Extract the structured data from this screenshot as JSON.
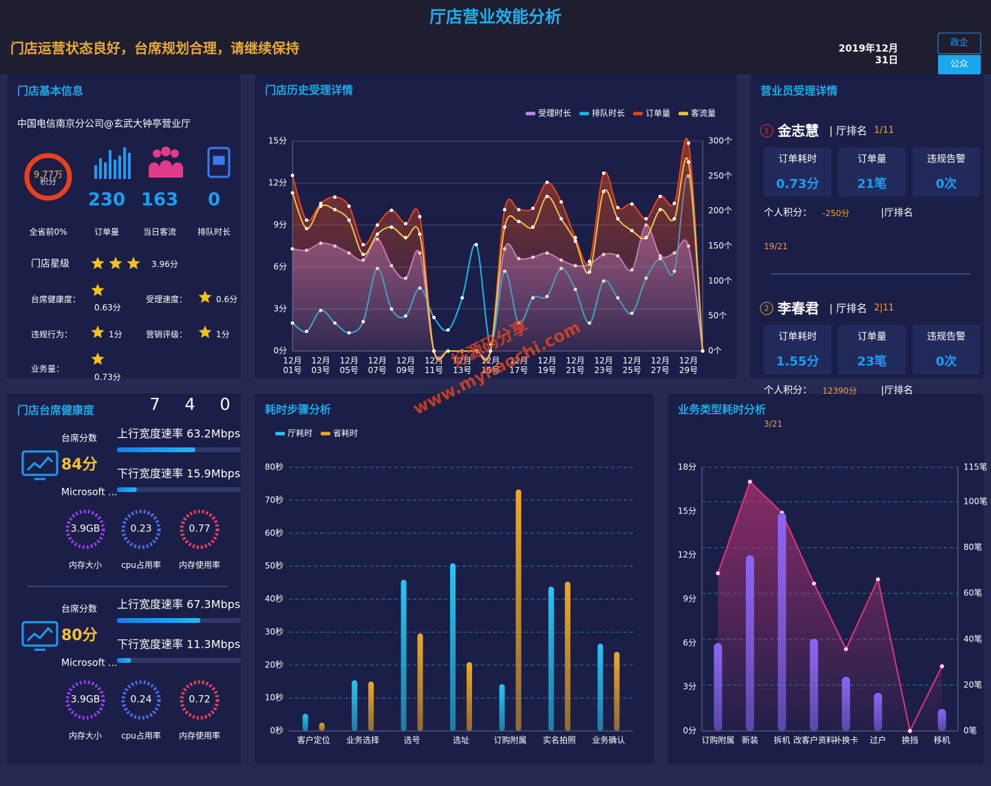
{
  "header": {
    "title": "厅店营业效能分析",
    "status": "门店运营状态良好，台席规划合理，请继续保持",
    "date": "2019年12月31日",
    "buttons": [
      "政企",
      "公众"
    ]
  },
  "watermark": [
    "好源码分享",
    "www.myhaochi.com"
  ],
  "store_info": {
    "title": "门店基本信息",
    "name": "中国电信南京分公司@玄武大钟亭营业厅",
    "points": "9.77万",
    "points_unit": "积分",
    "rank": "全省前0%",
    "stats": [
      {
        "value": 230,
        "label": "订单量"
      },
      {
        "value": 163,
        "label": "当日客流"
      },
      {
        "value": 0,
        "label": "排队时长"
      }
    ],
    "star_label": "门店星级",
    "star_score": "3.96分",
    "scores": [
      {
        "label": "台席健康度：",
        "value": "0.63分"
      },
      {
        "label": "受理速度：",
        "value": "0.6分"
      },
      {
        "label": "违规行为：",
        "value": "1分"
      },
      {
        "label": "营销评级：",
        "value": "1分"
      },
      {
        "label": "业务量：",
        "value": "0.73分"
      }
    ]
  },
  "staff": {
    "title": "营业员受理详情",
    "members": [
      {
        "rank": "1",
        "name": "金志慧",
        "rank_label": "| 厅排名",
        "hall_rank": "1/11",
        "metrics": [
          {
            "label": "订单耗时",
            "value": "0.73分"
          },
          {
            "label": "订单量",
            "value": "21笔"
          },
          {
            "label": "违规告警",
            "value": "0次"
          }
        ],
        "points_label": "个人积分：",
        "points": "-250分",
        "rank2_label": "|厅排名",
        "rank2": "19/21"
      },
      {
        "rank": "2",
        "name": "李春君",
        "rank_label": "| 厅排名",
        "hall_rank": "2|11",
        "metrics": [
          {
            "label": "订单耗时",
            "value": "1.55分"
          },
          {
            "label": "订单量",
            "value": "23笔"
          },
          {
            "label": "违规告警",
            "value": "0次"
          }
        ],
        "points_label": "个人积分：",
        "points": "12390分",
        "rank2_label": "|厅排名",
        "rank2": "3/21"
      }
    ]
  },
  "health": {
    "title": "门店台席健康度",
    "counts": [
      7,
      4,
      0
    ],
    "rate_range": [
      0,
      100
    ],
    "desks": [
      {
        "score_label": "台席分数",
        "score": "84分",
        "up": {
          "value": 63.2,
          "label": "上行宽度速率 63.2Mbps"
        },
        "down": {
          "value": 15.9,
          "label": "下行宽度速率 15.9Mbps"
        },
        "system": "Microsoft ...",
        "gauges": [
          {
            "value": "3.9GB",
            "label": "内存大小"
          },
          {
            "value": "0.23",
            "label": "cpu占用率"
          },
          {
            "value": "0.77",
            "label": "内存使用率"
          }
        ]
      },
      {
        "score_label": "台席分数",
        "score": "80分",
        "up": {
          "value": 67.3,
          "label": "上行宽度速率 67.3Mbps"
        },
        "down": {
          "value": 11.3,
          "label": "下行宽度速率 11.3Mbps"
        },
        "system": "Microsoft ...",
        "gauges": [
          {
            "value": "3.9GB",
            "label": "内存大小"
          },
          {
            "value": "0.24",
            "label": "cpu占用率"
          },
          {
            "value": "0.72",
            "label": "内存使用率"
          }
        ]
      }
    ]
  },
  "chart_data": [
    {
      "type": "line",
      "title": "门店历史受理详情",
      "categories": [
        "12月01号",
        null,
        "12月03号",
        null,
        "12月05号",
        null,
        "12月07号",
        null,
        "12月09号",
        null,
        "12月11号",
        null,
        "12月13号",
        null,
        "12月15号",
        null,
        "12月17号",
        null,
        "12月19号",
        null,
        "12月21号",
        null,
        "12月23号",
        null,
        "12月25号",
        null,
        "12月27号",
        null,
        "12月29号",
        null
      ],
      "series": [
        {
          "name": "受理时长",
          "color": "#b58df2",
          "area": true,
          "values": [
            7.3,
            7.2,
            7.7,
            7.5,
            7.0,
            6.5,
            8.0,
            6.1,
            5.2,
            7.0,
            0,
            0,
            0,
            0,
            0,
            7.3,
            6.6,
            6.7,
            7.0,
            6.5,
            6.1,
            6.2,
            6.9,
            6.8,
            5.8,
            9.0,
            6.8,
            7.0,
            7.5,
            0
          ]
        },
        {
          "name": "排队时长",
          "color": "#1ab8ec",
          "values": [
            2.0,
            1.4,
            2.9,
            2.0,
            1.3,
            2.1,
            5.9,
            3.0,
            2.5,
            4.5,
            2.4,
            1.5,
            3.8,
            7.6,
            0.5,
            5.7,
            2.0,
            3.8,
            3.9,
            5.9,
            4.4,
            2.0,
            5.0,
            3.8,
            2.7,
            5.2,
            6.6,
            5.7,
            12.5,
            0
          ]
        },
        {
          "name": "订单量",
          "color": "#e4461c",
          "axis": "y2",
          "area": true,
          "values": [
            251,
            187,
            211,
            220,
            207,
            152,
            180,
            201,
            182,
            192,
            0,
            0,
            0,
            0,
            0,
            202,
            202,
            204,
            241,
            213,
            162,
            128,
            254,
            205,
            210,
            189,
            221,
            211,
            297,
            0
          ]
        },
        {
          "name": "客流量",
          "color": "#f5c33b",
          "axis": "y2",
          "values": [
            226,
            175,
            207,
            202,
            187,
            138,
            167,
            177,
            162,
            167,
            0,
            0,
            0,
            0,
            0,
            177,
            185,
            177,
            221,
            189,
            157,
            113,
            228,
            189,
            172,
            162,
            202,
            189,
            270,
            0
          ]
        }
      ],
      "ylim": [
        0,
        15
      ],
      "yticks": [
        {
          "value": 0,
          "label": "0分"
        },
        {
          "value": 3,
          "label": "3分"
        },
        {
          "value": 6,
          "label": "6分"
        },
        {
          "value": 9,
          "label": "9分"
        },
        {
          "value": 12,
          "label": "12分"
        },
        {
          "value": 15,
          "label": "15分"
        }
      ],
      "y2lim": [
        0,
        300
      ],
      "y2ticks": [
        {
          "value": 0,
          "label": "0个"
        },
        {
          "value": 50,
          "label": "50个"
        },
        {
          "value": 100,
          "label": "100个"
        },
        {
          "value": 150,
          "label": "150个"
        },
        {
          "value": 200,
          "label": "200个"
        },
        {
          "value": 250,
          "label": "250个"
        },
        {
          "value": 300,
          "label": "300个"
        }
      ],
      "grid": "y",
      "legend": "top-right"
    },
    {
      "type": "bar",
      "title": "耗时步骤分析",
      "categories": [
        "客户定位",
        "业务选择",
        "选号",
        "选址",
        "订购附属",
        "实名拍照",
        "业务确认"
      ],
      "series": [
        {
          "name": "厅耗时",
          "color": "#22c8f2",
          "values": [
            5.2,
            15.4,
            45.9,
            50.9,
            14.2,
            43.8,
            26.5
          ]
        },
        {
          "name": "省耗时",
          "color": "#eea825",
          "values": [
            2.5,
            15.0,
            29.6,
            20.9,
            73.3,
            45.3,
            24.0
          ]
        }
      ],
      "ylim": [
        0,
        80
      ],
      "yticks": [
        {
          "value": 0,
          "label": "0秒"
        },
        {
          "value": 10,
          "label": "10秒"
        },
        {
          "value": 20,
          "label": "20秒"
        },
        {
          "value": 30,
          "label": "30秒"
        },
        {
          "value": 40,
          "label": "40秒"
        },
        {
          "value": 50,
          "label": "50秒"
        },
        {
          "value": 60,
          "label": "60秒"
        },
        {
          "value": 70,
          "label": "70秒"
        },
        {
          "value": 80,
          "label": "80秒"
        }
      ],
      "grid": "y",
      "legend": "top-left"
    },
    {
      "type": "bar-line",
      "title": "业务类型耗时分析",
      "categories": [
        "订购附属",
        "新装",
        "拆机",
        "改客户资料",
        "补换卡",
        "过户",
        "换挡",
        "移机"
      ],
      "series": [
        {
          "type": "bar",
          "color": "#8a66f6",
          "values": [
            6.0,
            12.0,
            14.9,
            6.3,
            3.7,
            2.6,
            0,
            1.5
          ]
        },
        {
          "type": "line",
          "color": "#e0357e",
          "axis": "y2",
          "values": [
            68.8,
            108.7,
            95.2,
            64.3,
            35.7,
            66.1,
            0,
            28.2
          ]
        }
      ],
      "ylim": [
        0,
        18
      ],
      "yticks": [
        {
          "value": 0,
          "label": "0分"
        },
        {
          "value": 3,
          "label": "3分"
        },
        {
          "value": 6,
          "label": "6分"
        },
        {
          "value": 9,
          "label": "9分"
        },
        {
          "value": 12,
          "label": "12分"
        },
        {
          "value": 15,
          "label": "15分"
        },
        {
          "value": 18,
          "label": "18分"
        }
      ],
      "y2lim": [
        0,
        115
      ],
      "y2ticks": [
        {
          "value": 0,
          "label": "0笔"
        },
        {
          "value": 20,
          "label": "20笔"
        },
        {
          "value": 40,
          "label": "40笔"
        },
        {
          "value": 60,
          "label": "60笔"
        },
        {
          "value": 80,
          "label": "80笔"
        },
        {
          "value": 100,
          "label": "100笔"
        },
        {
          "value": 115,
          "label": "115笔"
        }
      ],
      "grid": "y2"
    }
  ]
}
